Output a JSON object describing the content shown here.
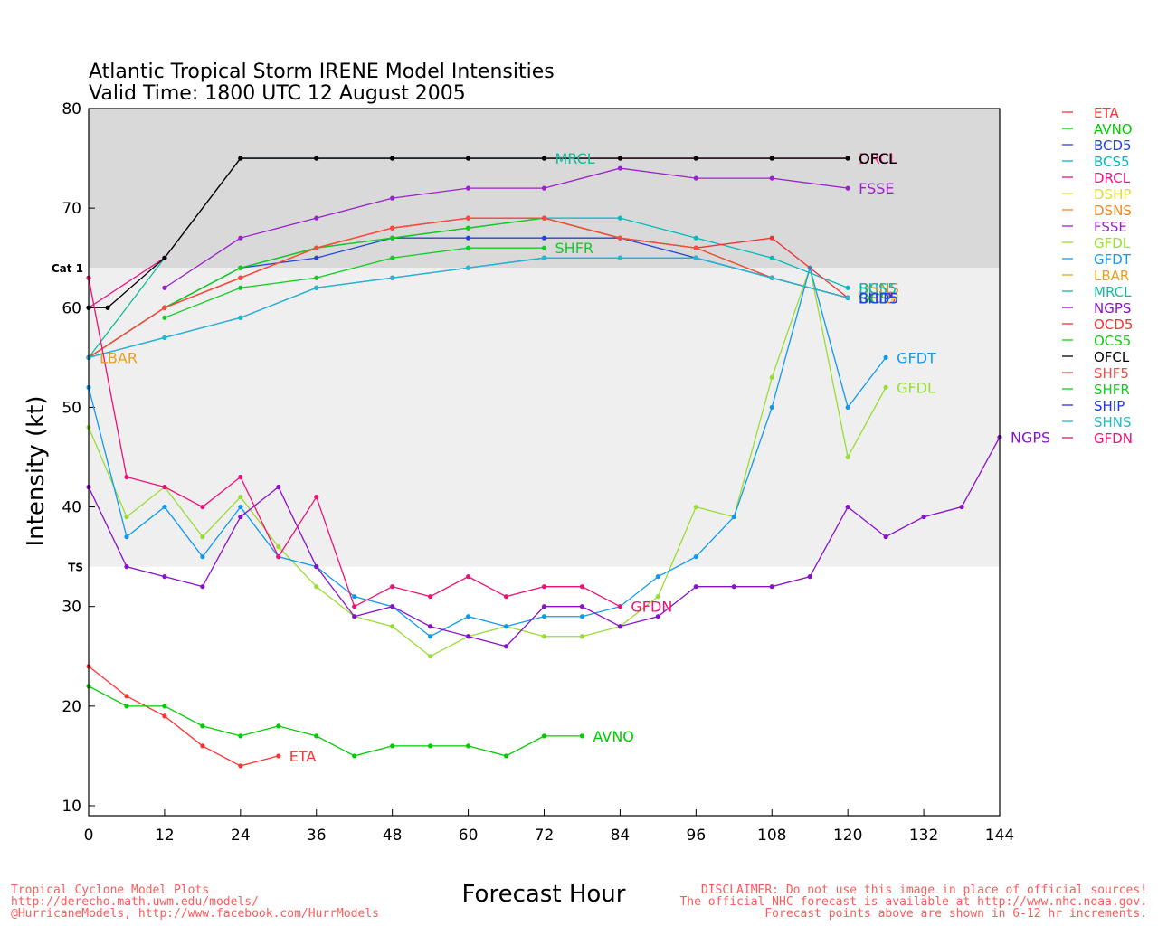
{
  "title": "Atlantic Tropical Storm IRENE Model Intensities",
  "subtitle": "Valid Time: 1800 UTC 12 August 2005",
  "footer_left": [
    "Tropical Cyclone Model Plots",
    "http://derecho.math.uwm.edu/models/",
    "@HurricaneModels, http://www.facebook.com/HurrModels"
  ],
  "footer_right": [
    "DISCLAIMER: Do not use this image in place of official sources!",
    "The official NHC forecast is available at http://www.nhc.noaa.gov.",
    "Forecast points above are shown in 6-12 hr increments."
  ],
  "chart_data": {
    "type": "line",
    "xlabel": "Forecast Hour",
    "ylabel": "Intensity (kt)",
    "xlim": [
      0,
      144
    ],
    "ylim": [
      9,
      80
    ],
    "xticks": [
      0,
      12,
      24,
      36,
      48,
      60,
      72,
      84,
      96,
      108,
      120,
      132,
      144
    ],
    "yticks": [
      10,
      20,
      30,
      40,
      50,
      60,
      70,
      80
    ],
    "bands": [
      {
        "label": "",
        "from": 64,
        "to": 80,
        "color": "#d9d9d9"
      },
      {
        "label": "Cat 1",
        "at": 64,
        "from": 34,
        "to": 64,
        "color": "#efefef"
      },
      {
        "label": "TS",
        "at": 34
      }
    ],
    "legend": {
      "placement": "right",
      "entries": [
        "ETA",
        "AVNO",
        "BCD5",
        "BCS5",
        "DRCL",
        "DSHP",
        "DSNS",
        "FSSE",
        "GFDL",
        "GFDT",
        "LBAR",
        "MRCL",
        "NGPS",
        "OCD5",
        "OCS5",
        "OFCL",
        "SHF5",
        "SHFR",
        "SHIP",
        "SHNS",
        "GFDN"
      ]
    },
    "series": [
      {
        "name": "ETA",
        "color": "#ff3333",
        "x": [
          0,
          6,
          12,
          18,
          24,
          30
        ],
        "y": [
          24,
          21,
          19,
          16,
          14,
          15
        ],
        "end_label": "ETA"
      },
      {
        "name": "AVNO",
        "color": "#00cc00",
        "x": [
          0,
          6,
          12,
          18,
          24,
          30,
          36,
          42,
          48,
          54,
          60,
          66,
          72,
          78
        ],
        "y": [
          22,
          20,
          20,
          18,
          17,
          18,
          17,
          15,
          16,
          16,
          16,
          15,
          17,
          17
        ],
        "end_label": "AVNO"
      },
      {
        "name": "BCD5",
        "color": "#2244dd",
        "x": [
          0,
          12,
          24,
          36,
          48,
          60,
          72,
          84,
          96,
          108,
          120
        ],
        "y": [
          55,
          60,
          64,
          65,
          67,
          67,
          67,
          67,
          65,
          63,
          61
        ],
        "end_label": ""
      },
      {
        "name": "BCS5",
        "color": "#00bbbb",
        "x": [
          0,
          12,
          24,
          36,
          48,
          60,
          72,
          84,
          96,
          108,
          120
        ],
        "y": [
          55,
          60,
          64,
          66,
          67,
          68,
          69,
          69,
          67,
          65,
          62
        ],
        "end_label": ""
      },
      {
        "name": "DRCL",
        "color": "#ee1188",
        "x": [
          0,
          12,
          24,
          36,
          48,
          60,
          72,
          84,
          96,
          108,
          120
        ],
        "y": [
          60,
          65,
          75,
          75,
          75,
          75,
          75,
          75,
          75,
          75,
          75
        ],
        "end_label": ""
      },
      {
        "name": "DSHP",
        "color": "#dddd33",
        "x": [
          0,
          12,
          24,
          36,
          48,
          60,
          72,
          84,
          96,
          108,
          120
        ],
        "y": [
          55,
          60,
          63,
          66,
          68,
          69,
          69,
          67,
          66,
          63,
          61
        ],
        "end_label": ""
      },
      {
        "name": "DSNS",
        "color": "#ee8822",
        "x": [
          0,
          12,
          24,
          36,
          48,
          60,
          72,
          84,
          96,
          108,
          120
        ],
        "y": [
          55,
          60,
          63,
          66,
          68,
          69,
          69,
          67,
          66,
          63,
          61
        ],
        "end_label": ""
      },
      {
        "name": "FSSE",
        "color": "#9922cc",
        "x": [
          12,
          24,
          36,
          48,
          60,
          72,
          84,
          96,
          108,
          120
        ],
        "y": [
          62,
          67,
          69,
          71,
          72,
          72,
          74,
          73,
          73,
          72
        ],
        "end_label": "FSSE"
      },
      {
        "name": "GFDL",
        "color": "#99dd33",
        "x": [
          0,
          6,
          12,
          18,
          24,
          30,
          36,
          42,
          48,
          54,
          60,
          66,
          72,
          78,
          84,
          90,
          96,
          102,
          108,
          114,
          120,
          126
        ],
        "y": [
          48,
          39,
          42,
          37,
          41,
          36,
          32,
          29,
          28,
          25,
          27,
          28,
          27,
          27,
          28,
          31,
          40,
          39,
          53,
          64,
          45,
          52
        ],
        "end_label": "GFDL"
      },
      {
        "name": "GFDT",
        "color": "#1199ee",
        "x": [
          0,
          6,
          12,
          18,
          24,
          30,
          36,
          42,
          48,
          54,
          60,
          66,
          72,
          78,
          84,
          90,
          96,
          102,
          108,
          114,
          120,
          126
        ],
        "y": [
          52,
          37,
          40,
          35,
          40,
          35,
          34,
          31,
          30,
          27,
          29,
          28,
          29,
          29,
          30,
          33,
          35,
          39,
          50,
          64,
          50,
          55
        ],
        "end_label": "GFDT"
      },
      {
        "name": "LBAR",
        "color": "#e8a020",
        "x": [
          0
        ],
        "y": [
          55
        ],
        "end_label": "LBAR"
      },
      {
        "name": "MRCL",
        "color": "#11bb99",
        "x": [
          0,
          12,
          24,
          36,
          48,
          60,
          72
        ],
        "y": [
          55,
          65,
          75,
          75,
          75,
          75,
          75
        ],
        "end_label": "MRCL"
      },
      {
        "name": "NGPS",
        "color": "#8811cc",
        "x": [
          0,
          6,
          12,
          18,
          24,
          30,
          36,
          42,
          48,
          54,
          60,
          66,
          72,
          78,
          84,
          90,
          96,
          102,
          108,
          114,
          120,
          126,
          132,
          138,
          144
        ],
        "y": [
          42,
          34,
          33,
          32,
          39,
          42,
          34,
          29,
          30,
          28,
          27,
          26,
          30,
          30,
          28,
          29,
          32,
          32,
          32,
          33,
          40,
          37,
          39,
          40,
          47
        ],
        "end_label": "NGPS"
      },
      {
        "name": "OCD5",
        "color": "#ee3333",
        "x": [
          0,
          12,
          24,
          36,
          48,
          60,
          72,
          84,
          96,
          108,
          120
        ],
        "y": [
          55,
          60,
          63,
          66,
          68,
          69,
          69,
          67,
          66,
          67,
          61
        ],
        "end_label": ""
      },
      {
        "name": "OCS5",
        "color": "#11cc11",
        "x": [
          0,
          12,
          24,
          36,
          48,
          60,
          72,
          84,
          96,
          108,
          120
        ],
        "y": [
          55,
          60,
          64,
          66,
          67,
          68,
          69,
          67,
          66,
          63,
          61
        ],
        "end_label": ""
      },
      {
        "name": "OFCL",
        "color": "#000000",
        "x": [
          0,
          3,
          12,
          24,
          36,
          48,
          60,
          72,
          84,
          96,
          108,
          120
        ],
        "y": [
          60,
          60,
          65,
          75,
          75,
          75,
          75,
          75,
          75,
          75,
          75,
          75
        ],
        "end_label": "OFCL"
      },
      {
        "name": "SHF5",
        "color": "#ff4444",
        "x": [
          0,
          12,
          24,
          36,
          48,
          60,
          72,
          84,
          96,
          108,
          120
        ],
        "y": [
          55,
          60,
          63,
          66,
          68,
          69,
          69,
          67,
          66,
          63,
          61
        ],
        "end_label": ""
      },
      {
        "name": "SHFR",
        "color": "#11cc22",
        "x": [
          12,
          24,
          36,
          48,
          60,
          72
        ],
        "y": [
          59,
          62,
          63,
          65,
          66,
          66
        ],
        "end_label": "SHFR"
      },
      {
        "name": "SHIP",
        "color": "#2233ee",
        "x": [
          0,
          12,
          24,
          36,
          48,
          60,
          72,
          84,
          96,
          108,
          120
        ],
        "y": [
          55,
          57,
          59,
          62,
          63,
          64,
          65,
          65,
          65,
          63,
          61
        ],
        "end_label": ""
      },
      {
        "name": "SHNS",
        "color": "#22bbcc",
        "x": [
          0,
          12,
          24,
          36,
          48,
          60,
          72,
          84,
          96,
          108,
          120
        ],
        "y": [
          55,
          57,
          59,
          62,
          63,
          64,
          65,
          65,
          65,
          63,
          61
        ],
        "end_label": ""
      },
      {
        "name": "GFDN",
        "color": "#ee1177",
        "x": [
          0,
          6,
          12,
          18,
          24,
          30,
          36,
          42,
          48,
          54,
          60,
          66,
          72,
          78,
          84
        ],
        "y": [
          63,
          43,
          42,
          40,
          43,
          35,
          41,
          30,
          32,
          31,
          33,
          31,
          32,
          32,
          30
        ],
        "end_label": "GFDN"
      }
    ],
    "overlap_labels": [
      {
        "text": "DRCL",
        "color": "#ee1188"
      },
      {
        "text": "OFCL",
        "color": "#000000"
      },
      {
        "text": "SHNS",
        "color": "#22bbcc"
      },
      {
        "text": "DSNS",
        "color": "#ee8822"
      },
      {
        "text": "BCS5",
        "color": "#00bbbb"
      },
      {
        "text": "SHF5",
        "color": "#ff4444"
      },
      {
        "text": "DSHP",
        "color": "#dddd33"
      },
      {
        "text": "OCS5",
        "color": "#11cc11"
      },
      {
        "text": "SHIP",
        "color": "#2233ee"
      },
      {
        "text": "BCD5",
        "color": "#2244dd"
      }
    ]
  }
}
